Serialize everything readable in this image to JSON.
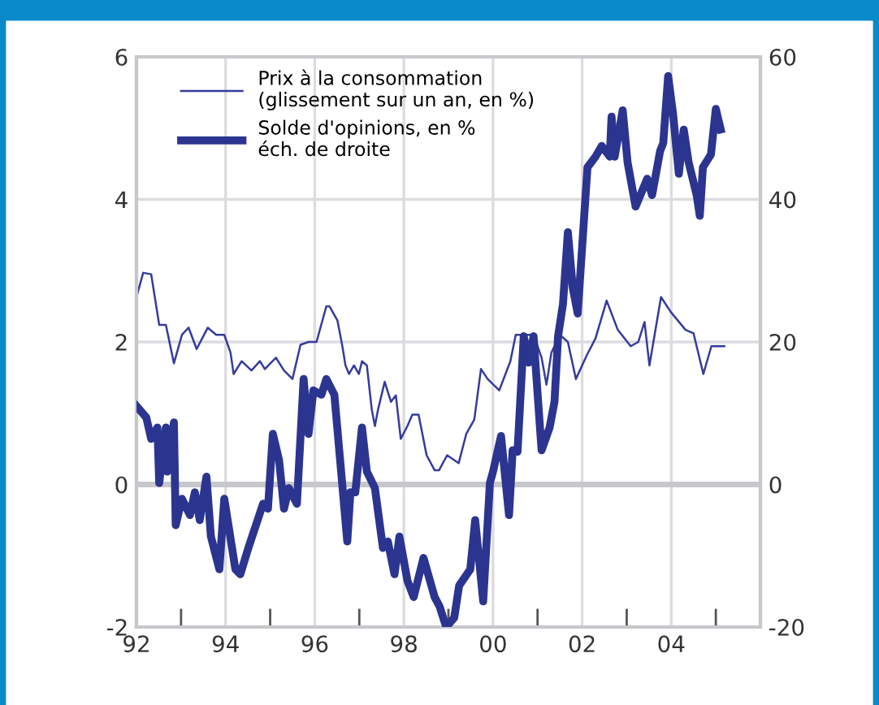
{
  "chart_data": {
    "type": "line",
    "legend": "top left",
    "grid": true,
    "xlim": [
      1992,
      2006
    ],
    "ylim": [
      -2,
      6
    ],
    "yticks": [
      -2,
      0,
      2,
      4,
      6
    ],
    "y2lim": [
      -20,
      60
    ],
    "y2ticks": [
      -20,
      0,
      20,
      40,
      60
    ],
    "xticks": [
      {
        "value": 1992,
        "label": "92"
      },
      {
        "value": 1993,
        "label": null
      },
      {
        "value": 1994,
        "label": "94"
      },
      {
        "value": 1995,
        "label": null
      },
      {
        "value": 1996,
        "label": "96"
      },
      {
        "value": 1997,
        "label": null
      },
      {
        "value": 1998,
        "label": "98"
      },
      {
        "value": 1999,
        "label": null
      },
      {
        "value": 2000,
        "label": "00"
      },
      {
        "value": 2001,
        "label": null
      },
      {
        "value": 2002,
        "label": "02"
      },
      {
        "value": 2003,
        "label": null
      },
      {
        "value": 2004,
        "label": "04"
      },
      {
        "value": 2005,
        "label": null
      },
      {
        "value": 2006,
        "label": null
      }
    ],
    "series": [
      {
        "name": "Prix à la consommation\n(glissement sur un an, en %)",
        "color": "#353c9c",
        "x": [
          1992.0,
          1992.15,
          1992.33,
          1992.51,
          1992.66,
          1992.84,
          1993.02,
          1993.17,
          1993.35,
          1993.6,
          1993.79,
          1993.97,
          1994.11,
          1994.18,
          1994.36,
          1994.58,
          1994.77,
          1994.88,
          1995.13,
          1995.31,
          1995.5,
          1995.68,
          1995.86,
          1996.04,
          1996.26,
          1996.33,
          1996.51,
          1996.62,
          1996.69,
          1996.77,
          1996.88,
          1996.99,
          1997.06,
          1997.17,
          1997.28,
          1997.35,
          1997.42,
          1997.57,
          1997.71,
          1997.82,
          1997.93,
          1998.08,
          1998.19,
          1998.33,
          1998.51,
          1998.69,
          1998.79,
          1998.97,
          1999.23,
          1999.4,
          1999.58,
          1999.73,
          1999.88,
          2000.14,
          2000.39,
          2000.51,
          2000.91,
          2001.09,
          2001.2,
          2001.31,
          2001.5,
          2001.68,
          2001.86,
          2002.11,
          2002.3,
          2002.55,
          2002.8,
          2003.09,
          2003.26,
          2003.4,
          2003.51,
          2003.77,
          2003.99,
          2004.32,
          2004.5,
          2004.72,
          2004.9,
          2005.0,
          2005.19
        ],
        "values": [
          2.63,
          2.97,
          2.95,
          2.24,
          2.24,
          1.7,
          2.1,
          2.2,
          1.9,
          2.2,
          2.1,
          2.1,
          1.85,
          1.55,
          1.73,
          1.6,
          1.73,
          1.62,
          1.78,
          1.6,
          1.48,
          1.96,
          2.0,
          2.0,
          2.5,
          2.5,
          2.3,
          1.94,
          1.67,
          1.55,
          1.67,
          1.55,
          1.73,
          1.67,
          1.05,
          0.82,
          1.05,
          1.44,
          1.16,
          1.25,
          0.64,
          0.82,
          0.98,
          0.98,
          0.41,
          0.2,
          0.2,
          0.41,
          0.3,
          0.71,
          0.91,
          1.62,
          1.48,
          1.32,
          1.73,
          2.1,
          2.1,
          1.78,
          1.4,
          1.85,
          2.1,
          2.0,
          1.48,
          1.82,
          2.05,
          2.58,
          2.17,
          1.94,
          2.0,
          2.28,
          1.67,
          2.63,
          2.42,
          2.17,
          2.12,
          1.55,
          1.94,
          1.94,
          1.94
        ]
      },
      {
        "name": "Solde d'opinions, en %\néch. de droite",
        "color": "#2b3590",
        "axis": "y2",
        "x": [
          1992.0,
          1992.22,
          1992.33,
          1992.47,
          1992.51,
          1992.66,
          1992.69,
          1992.84,
          1992.88,
          1993.02,
          1993.2,
          1993.31,
          1993.42,
          1993.57,
          1993.67,
          1993.86,
          1993.97,
          1994.22,
          1994.33,
          1994.51,
          1994.84,
          1994.95,
          1995.06,
          1995.2,
          1995.31,
          1995.42,
          1995.6,
          1995.75,
          1995.86,
          1995.97,
          1996.15,
          1996.26,
          1996.44,
          1996.55,
          1996.73,
          1996.8,
          1996.91,
          1997.06,
          1997.17,
          1997.35,
          1997.53,
          1997.64,
          1997.79,
          1997.9,
          1998.08,
          1998.22,
          1998.44,
          1998.69,
          1998.8,
          1998.95,
          1999.13,
          1999.24,
          1999.49,
          1999.6,
          1999.78,
          1999.93,
          2000.0,
          2000.18,
          2000.36,
          2000.44,
          2000.55,
          2000.69,
          2000.8,
          2000.91,
          2001.09,
          2001.27,
          2001.38,
          2001.46,
          2001.57,
          2001.68,
          2001.79,
          2001.9,
          2002.12,
          2002.3,
          2002.44,
          2002.62,
          2002.66,
          2002.73,
          2002.91,
          2003.02,
          2003.2,
          2003.46,
          2003.57,
          2003.75,
          2003.82,
          2003.93,
          2004.04,
          2004.17,
          2004.28,
          2004.39,
          2004.57,
          2004.64,
          2004.71,
          2004.89,
          2005.0,
          2005.11
        ],
        "values": [
          11,
          9.4,
          6.4,
          8,
          0.2,
          8,
          1.8,
          8.7,
          -5.7,
          -2,
          -4.3,
          -1.1,
          -5,
          1.1,
          -7.3,
          -11.9,
          -2,
          -11.9,
          -12.6,
          -8.9,
          -2.7,
          -3.4,
          7.1,
          3.4,
          -3.4,
          -0.5,
          -2.7,
          14.8,
          7.1,
          13.2,
          12.6,
          14.8,
          12.6,
          4.8,
          -8,
          -1.1,
          -1.1,
          8,
          1.8,
          -0.5,
          -8.9,
          -8,
          -12.6,
          -7.3,
          -13.5,
          -15.8,
          -10.3,
          -15.8,
          -17.1,
          -20,
          -18.7,
          -14.2,
          -11.9,
          -5,
          -16.4,
          0.2,
          1.8,
          6.8,
          -4.3,
          4.8,
          4.6,
          20.8,
          17.1,
          20.8,
          4.8,
          8,
          11.6,
          20.8,
          25.3,
          35.4,
          27.6,
          24,
          44.5,
          46,
          47.5,
          46,
          51.6,
          46,
          52.5,
          45.2,
          39,
          42.9,
          40.6,
          46.8,
          47.9,
          57.3,
          52,
          43.6,
          49.8,
          45.2,
          40.6,
          37.7,
          44.5,
          46.3,
          52.7,
          49.8
        ]
      }
    ]
  }
}
